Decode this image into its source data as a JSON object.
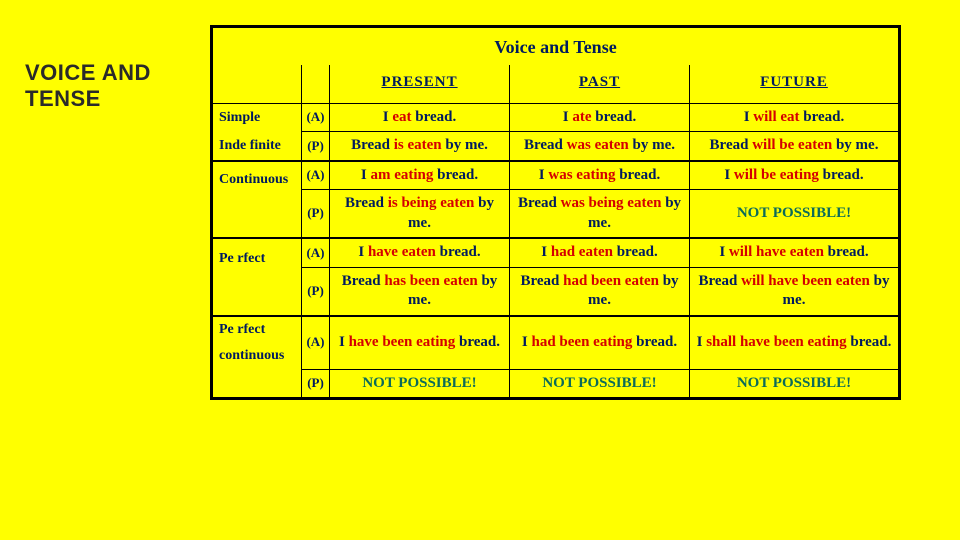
{
  "sideTitle": "VOICE AND TENSE",
  "tableTitle": "Voice and Tense",
  "colHeaders": {
    "present": "PRESENT",
    "past": "PAST",
    "future": "FUTURE"
  },
  "voiceLabels": {
    "active": "(A)",
    "passive": "(P)"
  },
  "rows": {
    "simple": {
      "label1": "Simple",
      "label2": "Inde finite",
      "a_present": [
        [
          "I ",
          "word"
        ],
        [
          "eat",
          "verb"
        ],
        [
          " bread.",
          "word"
        ]
      ],
      "a_past": [
        [
          "I ",
          "word"
        ],
        [
          "ate",
          "verb"
        ],
        [
          " bread.",
          "word"
        ]
      ],
      "a_future": [
        [
          "I ",
          "word"
        ],
        [
          "will eat",
          "verb"
        ],
        [
          " bread.",
          "word"
        ]
      ],
      "p_present": [
        [
          "Bread ",
          "word"
        ],
        [
          "is eaten",
          "verb"
        ],
        [
          " by me.",
          "word"
        ]
      ],
      "p_past": [
        [
          "Bread ",
          "word"
        ],
        [
          "was eaten",
          "verb"
        ],
        [
          " by me.",
          "word"
        ]
      ],
      "p_future": [
        [
          "Bread ",
          "word"
        ],
        [
          "will be eaten",
          "verb"
        ],
        [
          " by me.",
          "word"
        ]
      ]
    },
    "continuous": {
      "label": "Continuous",
      "a_present": [
        [
          "I ",
          "word"
        ],
        [
          "am eating",
          "verb"
        ],
        [
          " bread.",
          "word"
        ]
      ],
      "a_past": [
        [
          "I ",
          "word"
        ],
        [
          "was eating",
          "verb"
        ],
        [
          " bread.",
          "word"
        ]
      ],
      "a_future": [
        [
          "I ",
          "word"
        ],
        [
          "will be eating",
          "verb"
        ],
        [
          " bread.",
          "word"
        ]
      ],
      "p_present": [
        [
          "Bread ",
          "word"
        ],
        [
          "is being eaten",
          "verb"
        ],
        [
          " by me.",
          "word"
        ]
      ],
      "p_past": [
        [
          "Bread ",
          "word"
        ],
        [
          "was being eaten",
          "verb"
        ],
        [
          " by me.",
          "word"
        ]
      ],
      "p_future": [
        [
          "NOT POSSIBLE!",
          "np"
        ]
      ]
    },
    "perfect": {
      "label": "Pe rfect",
      "a_present": [
        [
          "I ",
          "word"
        ],
        [
          "have eaten",
          "verb"
        ],
        [
          " bread.",
          "word"
        ]
      ],
      "a_past": [
        [
          "I ",
          "word"
        ],
        [
          "had eaten",
          "verb"
        ],
        [
          " bread.",
          "word"
        ]
      ],
      "a_future": [
        [
          "I ",
          "word"
        ],
        [
          "will have eaten",
          "verb"
        ],
        [
          "  bread.",
          "word"
        ]
      ],
      "p_present": [
        [
          "Bread ",
          "word"
        ],
        [
          "has been eaten",
          "verb"
        ],
        [
          " by me.",
          "word"
        ]
      ],
      "p_past": [
        [
          "Bread ",
          "word"
        ],
        [
          "had been eaten",
          "verb"
        ],
        [
          " by me.",
          "word"
        ]
      ],
      "p_future": [
        [
          "Bread ",
          "word"
        ],
        [
          "will have been eaten",
          "verb"
        ],
        [
          " by me.",
          "word"
        ]
      ]
    },
    "perfectCont": {
      "label1": "Pe rfect",
      "label2": "continuous",
      "a_present": [
        [
          "I ",
          "word"
        ],
        [
          "have been eating",
          "verb"
        ],
        [
          " bread.",
          "word"
        ]
      ],
      "a_past": [
        [
          "I ",
          "word"
        ],
        [
          "had been eating",
          "verb"
        ],
        [
          " bread.",
          "word"
        ]
      ],
      "a_future": [
        [
          "I ",
          "word"
        ],
        [
          "shall have been eating",
          "verb"
        ],
        [
          " bread.",
          "word"
        ]
      ],
      "p_present": [
        [
          "NOT POSSIBLE!",
          "np"
        ]
      ],
      "p_past": [
        [
          "NOT POSSIBLE!",
          "np"
        ]
      ],
      "p_future": [
        [
          "NOT POSSIBLE!",
          "np"
        ]
      ]
    }
  },
  "colors": {
    "background": "#ffff00",
    "border": "#000000",
    "textPrimary": "#001b5e",
    "verb": "#d40000",
    "notPossible": "#0b6b5a",
    "sideTitle": "#2a2a2a"
  }
}
